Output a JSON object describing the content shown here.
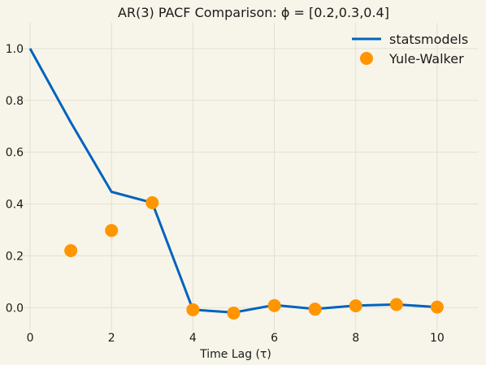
{
  "chart_data": {
    "type": "line",
    "title": "AR(3) PACF Comparison: ϕ = [0.2,0.3,0.4]",
    "xlabel": "Time Lag (τ)",
    "ylabel": "",
    "xlim": [
      -0.3,
      11
    ],
    "ylim": [
      -0.09,
      1.1
    ],
    "xticks": [
      0,
      2,
      4,
      6,
      8,
      10
    ],
    "yticks": [
      0.0,
      0.2,
      0.4,
      0.6,
      0.8,
      1.0
    ],
    "xtick_labels": [
      "0",
      "2",
      "4",
      "6",
      "8",
      "10"
    ],
    "ytick_labels": [
      "0.0",
      "0.2",
      "0.4",
      "0.6",
      "0.8",
      "1.0"
    ],
    "grid": true,
    "legend_position": "top-right",
    "series": [
      {
        "name": "statsmodels",
        "kind": "line",
        "color": "#0063be",
        "x": [
          0,
          1,
          2,
          3,
          4,
          5,
          6,
          7,
          8,
          9,
          10
        ],
        "y": [
          1.0,
          0.715,
          0.447,
          0.405,
          -0.008,
          -0.019,
          0.01,
          -0.005,
          0.008,
          0.012,
          0.002
        ]
      },
      {
        "name": "Yule-Walker",
        "kind": "scatter",
        "color": "#ff9500",
        "x": [
          1,
          2,
          3,
          4,
          5,
          6,
          7,
          8,
          9,
          10
        ],
        "y": [
          0.22,
          0.298,
          0.405,
          -0.008,
          -0.021,
          0.008,
          -0.006,
          0.007,
          0.012,
          0.002
        ]
      }
    ]
  },
  "colors": {
    "background": "#f7f5e9",
    "grid": "#e2e0d2"
  }
}
